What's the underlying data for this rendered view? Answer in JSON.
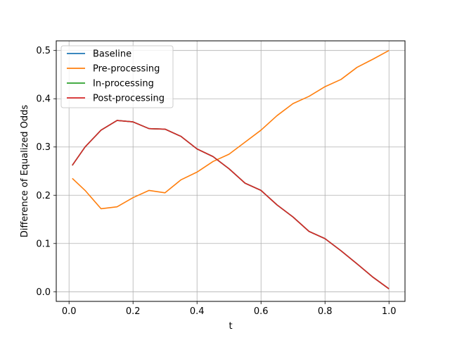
{
  "chart_data": {
    "type": "line",
    "title": "",
    "xlabel": "t",
    "ylabel": "Difference of Equalized Odds",
    "xlim": [
      -0.04,
      1.05
    ],
    "ylim": [
      -0.02,
      0.52
    ],
    "xticks": [
      0.0,
      0.2,
      0.4,
      0.6,
      0.8,
      1.0
    ],
    "yticks": [
      0.0,
      0.1,
      0.2,
      0.3,
      0.4,
      0.5
    ],
    "xtick_labels": [
      "0.0",
      "0.2",
      "0.4",
      "0.6",
      "0.8",
      "1.0"
    ],
    "ytick_labels": [
      "0.0",
      "0.1",
      "0.2",
      "0.3",
      "0.4",
      "0.5"
    ],
    "grid": true,
    "legend_position": "top-left",
    "x": [
      0.01,
      0.05,
      0.1,
      0.15,
      0.2,
      0.25,
      0.3,
      0.35,
      0.4,
      0.45,
      0.5,
      0.55,
      0.6,
      0.65,
      0.7,
      0.75,
      0.8,
      0.85,
      0.9,
      0.95,
      1.0
    ],
    "series": [
      {
        "name": "Baseline",
        "color": "#1f77b4",
        "values": [
          0.262,
          0.3,
          0.335,
          0.355,
          0.352,
          0.338,
          0.337,
          0.322,
          0.296,
          0.28,
          0.255,
          0.225,
          0.21,
          0.18,
          0.155,
          0.125,
          0.11,
          0.085,
          0.058,
          0.03,
          0.006
        ]
      },
      {
        "name": "Pre-processing",
        "color": "#ff7f0e",
        "values": [
          0.235,
          0.21,
          0.172,
          0.176,
          0.195,
          0.21,
          0.205,
          0.232,
          0.248,
          0.27,
          0.285,
          0.31,
          0.335,
          0.365,
          0.39,
          0.405,
          0.425,
          0.44,
          0.465,
          0.482,
          0.5
        ]
      },
      {
        "name": "In-processing",
        "color": "#2ca02c",
        "values": [
          0.262,
          0.3,
          0.335,
          0.355,
          0.352,
          0.338,
          0.337,
          0.322,
          0.296,
          0.28,
          0.255,
          0.225,
          0.21,
          0.18,
          0.155,
          0.125,
          0.11,
          0.085,
          0.058,
          0.03,
          0.006
        ]
      },
      {
        "name": "Post-processing",
        "color": "#d62728",
        "values": [
          0.262,
          0.3,
          0.335,
          0.355,
          0.352,
          0.338,
          0.337,
          0.322,
          0.296,
          0.28,
          0.255,
          0.225,
          0.21,
          0.18,
          0.155,
          0.125,
          0.11,
          0.085,
          0.058,
          0.03,
          0.006
        ]
      }
    ]
  }
}
